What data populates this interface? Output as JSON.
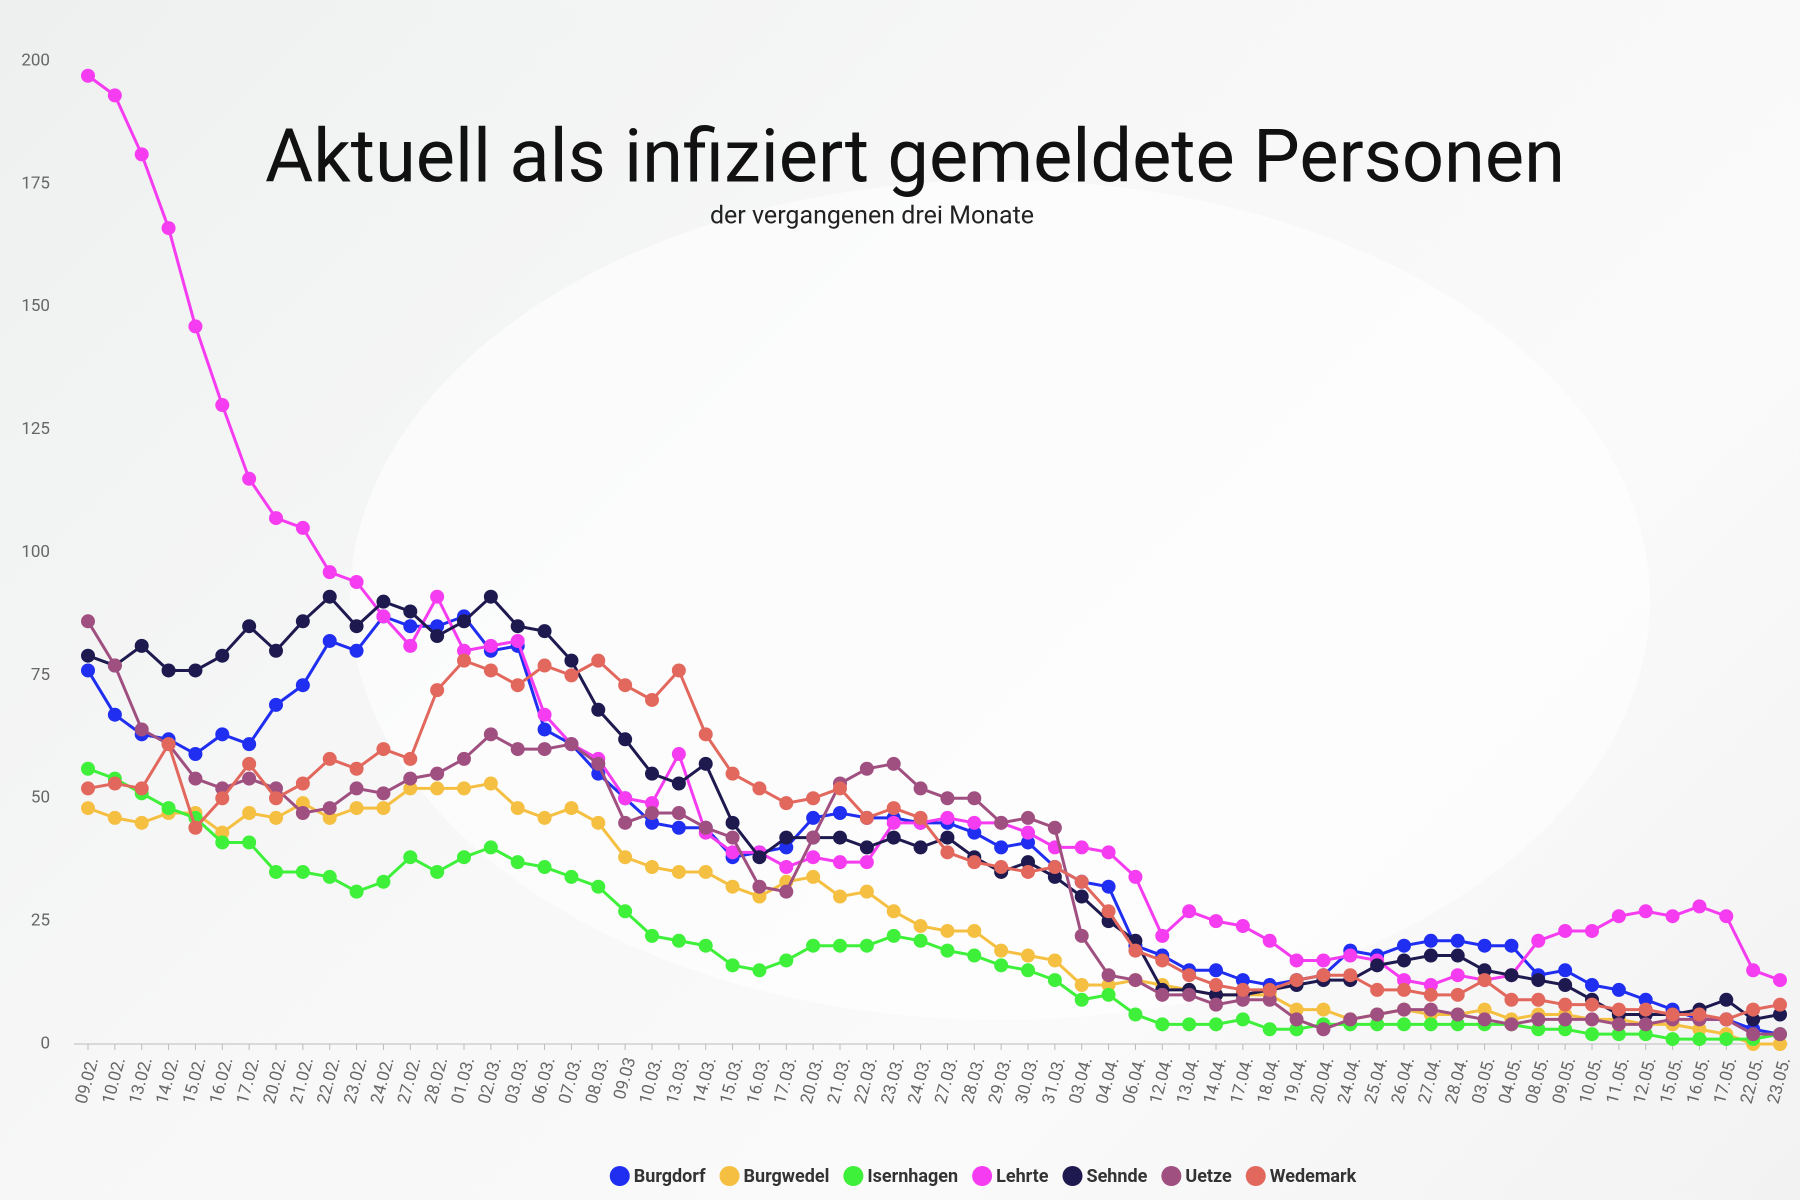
{
  "chart_data": {
    "type": "line",
    "title": "Aktuell als infiziert gemeldete Personen",
    "subtitle": "der vergangenen drei Monate",
    "categories": [
      "09.02.",
      "10.02.",
      "13.02.",
      "14.02.",
      "15.02.",
      "16.02.",
      "17.02.",
      "20.02.",
      "21.02.",
      "22.02.",
      "23.02.",
      "24.02.",
      "27.02.",
      "28.02.",
      "01.03.",
      "02.03.",
      "03.03.",
      "06.03.",
      "07.03.",
      "08.03.",
      "09.03",
      "10.03.",
      "13.03.",
      "14.03.",
      "15.03.",
      "16.03.",
      "17.03.",
      "20.03.",
      "21.03.",
      "22.03.",
      "23.03.",
      "24.03.",
      "27.03.",
      "28.03.",
      "29.03.",
      "30.03.",
      "31.03.",
      "03.04.",
      "04.04.",
      "06.04.",
      "12.04.",
      "13.04.",
      "14.04.",
      "17.04.",
      "18.04.",
      "19.04.",
      "20.04.",
      "24.04.",
      "25.04.",
      "26.04.",
      "27.04.",
      "28.04.",
      "03.05.",
      "04.05.",
      "08.05.",
      "09.05.",
      "10.05.",
      "11.05.",
      "12.05.",
      "15.05.",
      "16.05.",
      "17.05.",
      "22.05.",
      "23.05."
    ],
    "series": [
      {
        "name": "Burgdorf",
        "color": "#1f2ef0",
        "values": [
          76,
          67,
          63,
          62,
          59,
          63,
          61,
          69,
          73,
          82,
          80,
          87,
          85,
          85,
          87,
          80,
          81,
          64,
          61,
          55,
          50,
          45,
          44,
          44,
          38,
          39,
          40,
          46,
          47,
          46,
          46,
          45,
          45,
          43,
          40,
          41,
          36,
          33,
          32,
          20,
          18,
          15,
          15,
          13,
          12,
          13,
          14,
          19,
          18,
          20,
          21,
          21,
          20,
          20,
          14,
          15,
          12,
          11,
          9,
          7,
          5,
          5,
          3,
          2
        ]
      },
      {
        "name": "Burgwedel",
        "color": "#f5c042",
        "values": [
          48,
          46,
          45,
          47,
          47,
          43,
          47,
          46,
          49,
          46,
          48,
          48,
          52,
          52,
          52,
          53,
          48,
          46,
          48,
          45,
          38,
          36,
          35,
          35,
          32,
          30,
          33,
          34,
          30,
          31,
          27,
          24,
          23,
          23,
          19,
          18,
          17,
          12,
          12,
          13,
          12,
          11,
          10,
          10,
          10,
          7,
          7,
          5,
          6,
          7,
          6,
          6,
          7,
          5,
          6,
          6,
          5,
          5,
          4,
          4,
          3,
          2,
          0,
          0
        ]
      },
      {
        "name": "Isernhagen",
        "color": "#3ef03a",
        "values": [
          56,
          54,
          51,
          48,
          46,
          41,
          41,
          35,
          35,
          34,
          31,
          33,
          38,
          35,
          38,
          40,
          37,
          36,
          34,
          32,
          27,
          22,
          21,
          20,
          16,
          15,
          17,
          20,
          20,
          20,
          22,
          21,
          19,
          18,
          16,
          15,
          13,
          9,
          10,
          6,
          4,
          4,
          4,
          5,
          3,
          3,
          4,
          4,
          4,
          4,
          4,
          4,
          4,
          4,
          3,
          3,
          2,
          2,
          2,
          1,
          1,
          1,
          1,
          2
        ]
      },
      {
        "name": "Lehrte",
        "color": "#f53cf0",
        "values": [
          197,
          193,
          181,
          166,
          146,
          130,
          115,
          107,
          105,
          96,
          94,
          87,
          81,
          91,
          80,
          81,
          82,
          67,
          61,
          58,
          50,
          49,
          59,
          43,
          39,
          39,
          36,
          38,
          37,
          37,
          45,
          45,
          46,
          45,
          45,
          43,
          40,
          40,
          39,
          34,
          22,
          27,
          25,
          24,
          21,
          17,
          17,
          18,
          17,
          13,
          12,
          14,
          13,
          14,
          21,
          23,
          23,
          26,
          27,
          26,
          28,
          26,
          15,
          13
        ]
      },
      {
        "name": "Sehnde",
        "color": "#1e1a4f",
        "values": [
          79,
          77,
          81,
          76,
          76,
          79,
          85,
          80,
          86,
          91,
          85,
          90,
          88,
          83,
          86,
          91,
          85,
          84,
          78,
          68,
          62,
          55,
          53,
          57,
          45,
          38,
          42,
          42,
          42,
          40,
          42,
          40,
          42,
          38,
          35,
          37,
          34,
          30,
          25,
          21,
          11,
          11,
          10,
          10,
          11,
          12,
          13,
          13,
          16,
          17,
          18,
          18,
          15,
          14,
          13,
          12,
          9,
          6,
          6,
          6,
          7,
          9,
          5,
          6
        ]
      },
      {
        "name": "Uetze",
        "color": "#a05080",
        "values": [
          86,
          77,
          64,
          61,
          54,
          52,
          54,
          52,
          47,
          48,
          52,
          51,
          54,
          55,
          58,
          63,
          60,
          60,
          61,
          57,
          45,
          47,
          47,
          44,
          42,
          32,
          31,
          42,
          53,
          56,
          57,
          52,
          50,
          50,
          45,
          46,
          44,
          22,
          14,
          13,
          10,
          10,
          8,
          9,
          9,
          5,
          3,
          5,
          6,
          7,
          7,
          6,
          5,
          4,
          5,
          5,
          5,
          4,
          4,
          5,
          5,
          5,
          2,
          2
        ]
      },
      {
        "name": "Wedemark",
        "color": "#e2685e",
        "values": [
          52,
          53,
          52,
          61,
          44,
          50,
          57,
          50,
          53,
          58,
          56,
          60,
          58,
          72,
          78,
          76,
          73,
          77,
          75,
          78,
          73,
          70,
          76,
          63,
          55,
          52,
          49,
          50,
          52,
          46,
          48,
          46,
          39,
          37,
          36,
          35,
          36,
          33,
          27,
          19,
          17,
          14,
          12,
          11,
          11,
          13,
          14,
          14,
          11,
          11,
          10,
          10,
          13,
          9,
          9,
          8,
          8,
          7,
          7,
          6,
          6,
          5,
          7,
          8
        ]
      }
    ],
    "ylim": [
      0,
      200
    ],
    "yticks": [
      0,
      25,
      50,
      75,
      100,
      125,
      150,
      175,
      200
    ],
    "grid": false,
    "legend": "bottom"
  }
}
